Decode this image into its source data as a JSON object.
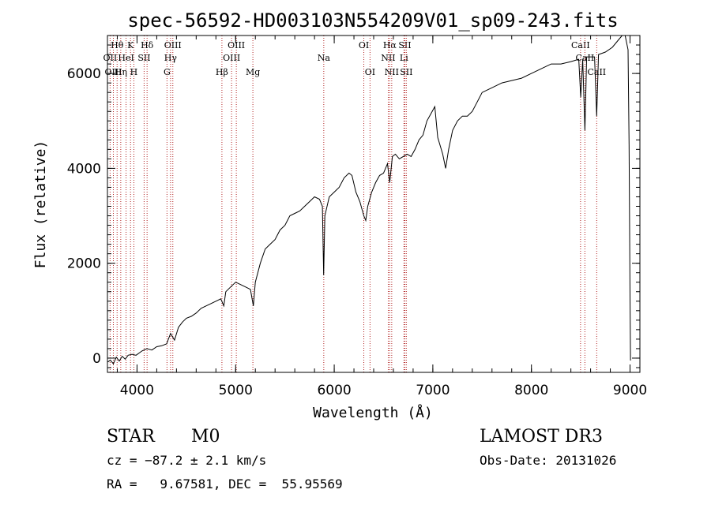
{
  "chart_data": {
    "type": "line",
    "title": "spec-56592-HD003103N554209V01_sp09-243.fits",
    "xlabel": "Wavelength (Å)",
    "ylabel": "Flux (relative)",
    "xlim": [
      3700,
      9100
    ],
    "ylim": [
      -300,
      6800
    ],
    "x_ticks": [
      4000,
      5000,
      6000,
      7000,
      8000,
      9000
    ],
    "y_ticks": [
      0,
      2000,
      4000,
      6000
    ],
    "grid": false,
    "series": [
      {
        "name": "flux",
        "color": "#000000",
        "points": [
          [
            3705,
            -80
          ],
          [
            3730,
            -40
          ],
          [
            3760,
            -120
          ],
          [
            3790,
            20
          ],
          [
            3820,
            -60
          ],
          [
            3850,
            40
          ],
          [
            3880,
            -20
          ],
          [
            3910,
            60
          ],
          [
            3950,
            80
          ],
          [
            3990,
            60
          ],
          [
            4050,
            150
          ],
          [
            4100,
            200
          ],
          [
            4150,
            170
          ],
          [
            4200,
            240
          ],
          [
            4250,
            260
          ],
          [
            4300,
            300
          ],
          [
            4340,
            520
          ],
          [
            4380,
            380
          ],
          [
            4420,
            650
          ],
          [
            4460,
            760
          ],
          [
            4500,
            840
          ],
          [
            4550,
            880
          ],
          [
            4600,
            950
          ],
          [
            4650,
            1050
          ],
          [
            4700,
            1100
          ],
          [
            4750,
            1150
          ],
          [
            4800,
            1200
          ],
          [
            4850,
            1250
          ],
          [
            4880,
            1100
          ],
          [
            4900,
            1400
          ],
          [
            4950,
            1500
          ],
          [
            5000,
            1600
          ],
          [
            5050,
            1550
          ],
          [
            5100,
            1500
          ],
          [
            5150,
            1450
          ],
          [
            5180,
            1100
          ],
          [
            5200,
            1600
          ],
          [
            5250,
            2000
          ],
          [
            5300,
            2300
          ],
          [
            5350,
            2400
          ],
          [
            5400,
            2500
          ],
          [
            5450,
            2700
          ],
          [
            5500,
            2800
          ],
          [
            5550,
            3000
          ],
          [
            5600,
            3050
          ],
          [
            5650,
            3100
          ],
          [
            5700,
            3200
          ],
          [
            5750,
            3300
          ],
          [
            5800,
            3400
          ],
          [
            5850,
            3350
          ],
          [
            5880,
            3200
          ],
          [
            5893,
            1750
          ],
          [
            5905,
            3000
          ],
          [
            5950,
            3400
          ],
          [
            6000,
            3500
          ],
          [
            6050,
            3600
          ],
          [
            6100,
            3800
          ],
          [
            6150,
            3900
          ],
          [
            6180,
            3850
          ],
          [
            6220,
            3500
          ],
          [
            6260,
            3300
          ],
          [
            6300,
            3000
          ],
          [
            6320,
            2900
          ],
          [
            6340,
            3200
          ],
          [
            6380,
            3500
          ],
          [
            6420,
            3700
          ],
          [
            6460,
            3850
          ],
          [
            6500,
            3900
          ],
          [
            6540,
            4100
          ],
          [
            6563,
            3700
          ],
          [
            6590,
            4250
          ],
          [
            6620,
            4300
          ],
          [
            6660,
            4200
          ],
          [
            6700,
            4250
          ],
          [
            6740,
            4300
          ],
          [
            6780,
            4250
          ],
          [
            6820,
            4400
          ],
          [
            6860,
            4600
          ],
          [
            6900,
            4700
          ],
          [
            6940,
            5000
          ],
          [
            6980,
            5150
          ],
          [
            7020,
            5300
          ],
          [
            7050,
            4650
          ],
          [
            7100,
            4300
          ],
          [
            7130,
            4000
          ],
          [
            7160,
            4400
          ],
          [
            7200,
            4800
          ],
          [
            7250,
            5000
          ],
          [
            7300,
            5100
          ],
          [
            7350,
            5100
          ],
          [
            7400,
            5200
          ],
          [
            7450,
            5400
          ],
          [
            7500,
            5600
          ],
          [
            7600,
            5700
          ],
          [
            7700,
            5800
          ],
          [
            7800,
            5850
          ],
          [
            7900,
            5900
          ],
          [
            8000,
            6000
          ],
          [
            8100,
            6100
          ],
          [
            8200,
            6200
          ],
          [
            8300,
            6200
          ],
          [
            8400,
            6250
          ],
          [
            8480,
            6300
          ],
          [
            8500,
            5500
          ],
          [
            8520,
            6300
          ],
          [
            8542,
            4800
          ],
          [
            8560,
            6350
          ],
          [
            8600,
            6350
          ],
          [
            8640,
            6350
          ],
          [
            8662,
            5100
          ],
          [
            8680,
            6400
          ],
          [
            8750,
            6450
          ],
          [
            8820,
            6550
          ],
          [
            8880,
            6700
          ],
          [
            8920,
            6800
          ],
          [
            8950,
            6800
          ],
          [
            8980,
            6500
          ],
          [
            8990,
            4500
          ],
          [
            9000,
            1300
          ],
          [
            9005,
            -50
          ]
        ]
      }
    ],
    "lines": [
      {
        "label": "Hθ",
        "wave": 3798,
        "row": 1
      },
      {
        "label": "OII",
        "wave": 3727,
        "row": 2
      },
      {
        "label": "OIII",
        "wave": 3760,
        "row": 3
      },
      {
        "label": "K",
        "wave": 3934,
        "row": 1
      },
      {
        "label": "HeI",
        "wave": 3889,
        "row": 2
      },
      {
        "label": "Hη",
        "wave": 3835,
        "row": 3
      },
      {
        "label": "H",
        "wave": 3968,
        "row": 3
      },
      {
        "label": "SII",
        "wave": 4072,
        "row": 2
      },
      {
        "label": "Hδ",
        "wave": 4102,
        "row": 1
      },
      {
        "label": "OIII",
        "wave": 4363,
        "row": 1
      },
      {
        "label": "Hγ",
        "wave": 4340,
        "row": 2
      },
      {
        "label": "G",
        "wave": 4304,
        "row": 3
      },
      {
        "label": "Hβ",
        "wave": 4861,
        "row": 3
      },
      {
        "label": "OIII",
        "wave": 5007,
        "row": 1
      },
      {
        "label": "OIII",
        "wave": 4959,
        "row": 2
      },
      {
        "label": "Mg",
        "wave": 5175,
        "row": 3
      },
      {
        "label": "Na",
        "wave": 5894,
        "row": 2
      },
      {
        "label": "OI",
        "wave": 6300,
        "row": 1
      },
      {
        "label": "OI",
        "wave": 6363,
        "row": 3
      },
      {
        "label": "Hα",
        "wave": 6563,
        "row": 1
      },
      {
        "label": "NII",
        "wave": 6548,
        "row": 2
      },
      {
        "label": "NII",
        "wave": 6583,
        "row": 3
      },
      {
        "label": "SII",
        "wave": 6716,
        "row": 1
      },
      {
        "label": "Li",
        "wave": 6707,
        "row": 2
      },
      {
        "label": "SII",
        "wave": 6731,
        "row": 3
      },
      {
        "label": "CaII",
        "wave": 8498,
        "row": 1
      },
      {
        "label": "CaII",
        "wave": 8542,
        "row": 2
      },
      {
        "label": "CaII",
        "wave": 8662,
        "row": 3
      }
    ],
    "annotations": {
      "class_label": "STAR",
      "subclass": "M0",
      "survey": "LAMOST DR3",
      "redshift": "cz = −87.2 ± 2.1 km/s",
      "obs_date": "Obs-Date: 20131026",
      "coords": "RA =   9.67581, DEC =  55.95569"
    }
  }
}
